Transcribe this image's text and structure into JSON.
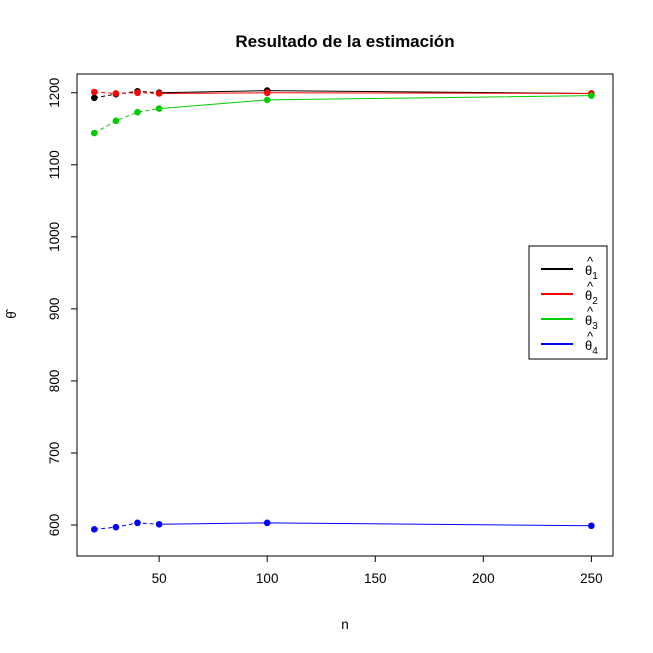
{
  "chart_data": {
    "type": "line",
    "title": "Resultado de la estimación",
    "xlabel": "n",
    "ylabel": "θ̂",
    "xlim": [
      12,
      260
    ],
    "ylim": [
      557,
      1226
    ],
    "xticks": [
      50,
      100,
      150,
      200,
      250
    ],
    "yticks": [
      600,
      700,
      800,
      900,
      1000,
      1100,
      1200
    ],
    "x": [
      20,
      30,
      40,
      50,
      100,
      250
    ],
    "series": [
      {
        "name": "θ̂1",
        "base": "θ",
        "sub": "1",
        "color": "#000000",
        "values": [
          1193,
          1198,
          1202,
          1200,
          1203,
          1199
        ]
      },
      {
        "name": "θ̂2",
        "base": "θ",
        "sub": "2",
        "color": "#FF0000",
        "values": [
          1201,
          1199,
          1200,
          1199,
          1200,
          1199
        ]
      },
      {
        "name": "θ̂3",
        "base": "θ",
        "sub": "3",
        "color": "#00CD00",
        "values": [
          1144,
          1161,
          1173,
          1178,
          1190,
          1196
        ]
      },
      {
        "name": "θ̂4",
        "base": "θ",
        "sub": "4",
        "color": "#0000FF",
        "values": [
          594,
          597,
          603,
          601,
          603,
          599
        ]
      }
    ],
    "legend_position": "right",
    "grid": false
  }
}
